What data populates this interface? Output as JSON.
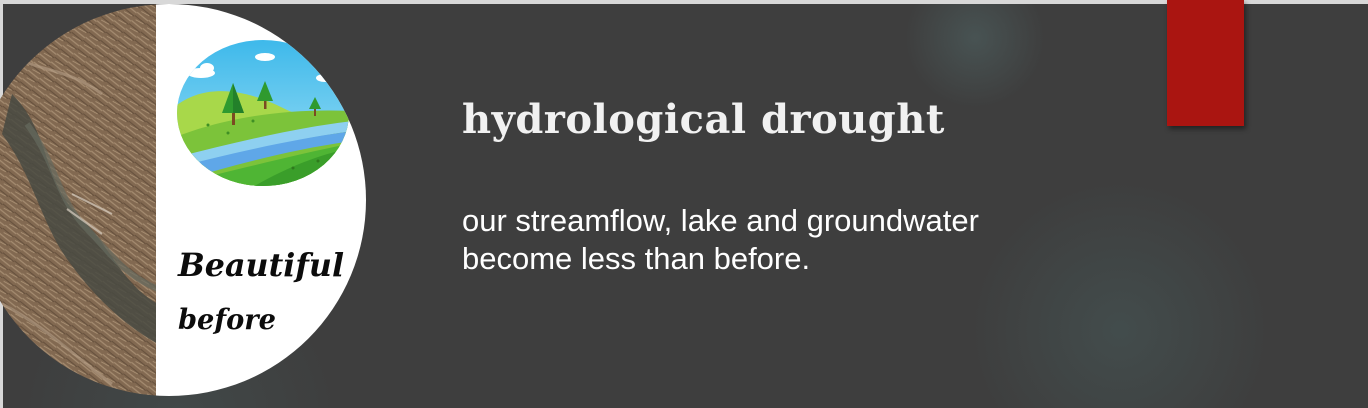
{
  "slide": {
    "title": "hydrological drought",
    "body_lines": [
      "our streamflow, lake and groundwater",
      "become less than before."
    ],
    "logo": {
      "line1": "Beautiful",
      "line2": "before"
    }
  },
  "colors": {
    "background": "#3e3e3e",
    "accent_bar": "#aa1511",
    "title": "#f1f1f1",
    "body": "#ffffff"
  },
  "icons": [
    "dry-riverbed-photo",
    "green-hills-river-illustration",
    "tree-icon",
    "cloud-icon"
  ]
}
